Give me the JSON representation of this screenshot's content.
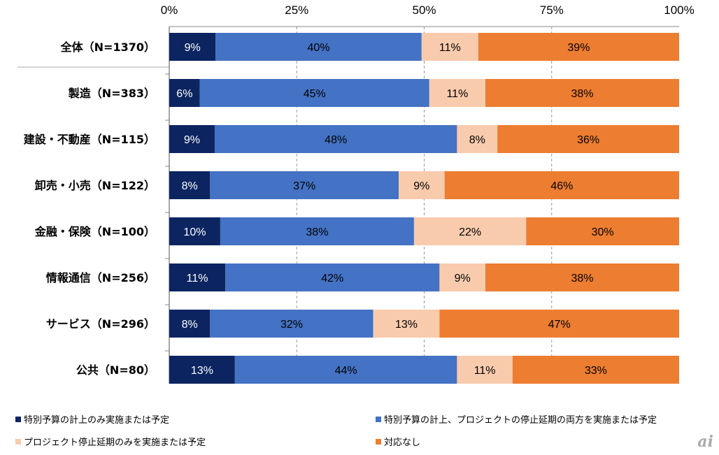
{
  "chart_data": {
    "type": "bar",
    "orientation": "horizontal",
    "stacked": true,
    "title": "",
    "xlabel": "",
    "ylabel": "",
    "xlim": [
      0,
      100
    ],
    "x_ticks": [
      "0%",
      "25%",
      "50%",
      "75%",
      "100%"
    ],
    "grid": "vertical dashed",
    "legend_position": "bottom",
    "categories": [
      "全体（N=1370）",
      "製造（N=383）",
      "建設・不動産（N=115）",
      "卸売・小売（N=122）",
      "金融・保険（N=100）",
      "情報通信（N=256）",
      "サービス（N=296）",
      "公共（N=80）"
    ],
    "series": [
      {
        "name": "特別予算の計上のみ実施または予定",
        "color": "#0c2561",
        "values": [
          9,
          6,
          9,
          8,
          10,
          11,
          8,
          13
        ]
      },
      {
        "name": "特別予算の計上、プロジェクトの停止延期の両方を実施または予定",
        "color": "#4472c4",
        "values": [
          40,
          45,
          48,
          37,
          38,
          42,
          32,
          44
        ]
      },
      {
        "name": "プロジェクト停止延期のみを実施または予定",
        "color": "#f8cbad",
        "values": [
          11,
          11,
          8,
          9,
          22,
          9,
          13,
          11
        ]
      },
      {
        "name": "対応なし",
        "color": "#ed7d31",
        "values": [
          39,
          38,
          36,
          46,
          30,
          38,
          47,
          33
        ]
      }
    ]
  },
  "logo_text": "ai"
}
